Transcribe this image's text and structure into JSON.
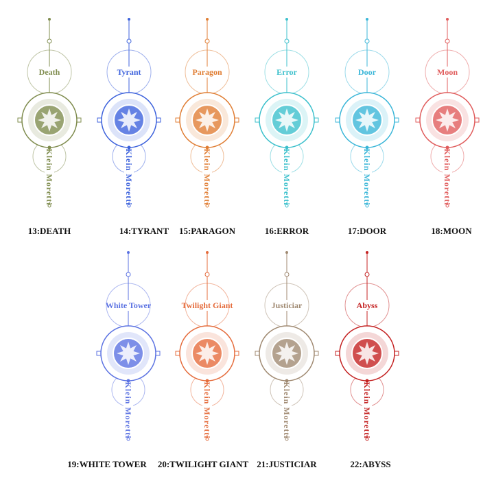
{
  "items": [
    {
      "title": "Death",
      "vertical": "Klein Moretti",
      "caption": "13:DEATH",
      "color": "#7f8c4e"
    },
    {
      "title": "Tyrant",
      "vertical": "Klein Moretti",
      "caption": "14:TYRANT",
      "color": "#3d62dc"
    },
    {
      "title": "Paragon",
      "vertical": "Klein Moretti",
      "caption": "15:PARAGON",
      "color": "#e07e34"
    },
    {
      "title": "Error",
      "vertical": "Klein Moretti",
      "caption": "16:ERROR",
      "color": "#3cc0cc"
    },
    {
      "title": "Door",
      "vertical": "Klein Moretti",
      "caption": "17:DOOR",
      "color": "#3ab6d8"
    },
    {
      "title": "Moon",
      "vertical": "Klein Moretti",
      "caption": "18:MOON",
      "color": "#e05c5c"
    },
    {
      "title": "White Tower",
      "vertical": "Klein Moretti",
      "caption": "19:WHITE TOWER",
      "color": "#5b72e2"
    },
    {
      "title": "Twilight Giant",
      "vertical": "Klein Moretti",
      "caption": "20:TWILIGHT GIANT",
      "color": "#e56c3c"
    },
    {
      "title": "Justiciar",
      "vertical": "Klein Moretti",
      "caption": "21:JUSTICIAR",
      "color": "#a08a72"
    },
    {
      "title": "Abyss",
      "vertical": "Klein Moretti",
      "caption": "22:ABYSS",
      "color": "#c42222"
    }
  ]
}
